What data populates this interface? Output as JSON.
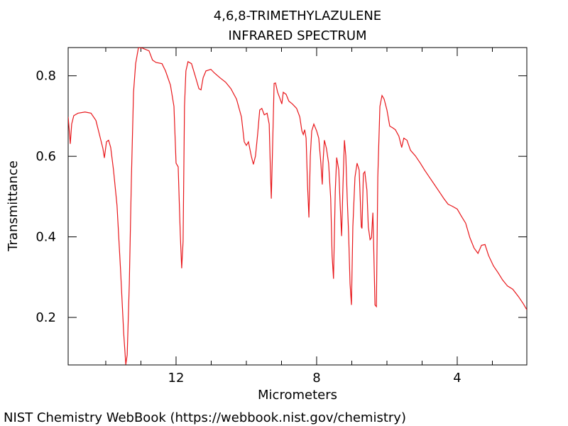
{
  "chart_data": {
    "type": "line",
    "title": "4,6,8-TRIMETHYLAZULENE",
    "subtitle": "INFRARED SPECTRUM",
    "x_label": "Micrometers",
    "y_label": "Transmittance",
    "footer": "NIST Chemistry WebBook (https://webbook.nist.gov/chemistry)",
    "color": "#e8171b",
    "xlim": [
      15.07,
      2.02
    ],
    "ylim": [
      0.082,
      0.87
    ],
    "xticks": [
      12,
      8,
      4
    ],
    "xminor_ticks": [
      14,
      13,
      11,
      10,
      9,
      7,
      6,
      5,
      3
    ],
    "yticks": [
      0.2,
      0.4,
      0.6,
      0.8
    ],
    "x": [
      15.07,
      15.03,
      15.01,
      14.97,
      14.91,
      14.79,
      14.59,
      14.42,
      14.28,
      14.18,
      14.08,
      14.04,
      13.98,
      13.92,
      13.86,
      13.78,
      13.68,
      13.58,
      13.49,
      13.43,
      13.39,
      13.33,
      13.27,
      13.21,
      13.15,
      13.07,
      12.97,
      12.77,
      12.67,
      12.57,
      12.4,
      12.3,
      12.16,
      12.06,
      12.0,
      11.94,
      11.88,
      11.84,
      11.8,
      11.76,
      11.72,
      11.66,
      11.56,
      11.45,
      11.35,
      11.29,
      11.23,
      11.15,
      11.01,
      10.91,
      10.75,
      10.59,
      10.44,
      10.28,
      10.14,
      10.06,
      10.0,
      9.94,
      9.86,
      9.8,
      9.74,
      9.68,
      9.62,
      9.56,
      9.49,
      9.41,
      9.35,
      9.31,
      9.29,
      9.25,
      9.21,
      9.17,
      9.11,
      9.05,
      8.99,
      8.95,
      8.87,
      8.79,
      8.69,
      8.57,
      8.48,
      8.42,
      8.38,
      8.34,
      8.3,
      8.26,
      8.22,
      8.18,
      8.14,
      8.08,
      8.0,
      7.94,
      7.88,
      7.84,
      7.82,
      7.78,
      7.72,
      7.66,
      7.6,
      7.56,
      7.52,
      7.47,
      7.43,
      7.37,
      7.33,
      7.29,
      7.25,
      7.21,
      7.17,
      7.13,
      7.09,
      7.05,
      7.01,
      6.97,
      6.91,
      6.85,
      6.79,
      6.73,
      6.71,
      6.67,
      6.63,
      6.57,
      6.53,
      6.48,
      6.44,
      6.4,
      6.38,
      6.34,
      6.3,
      6.26,
      6.2,
      6.14,
      6.08,
      6.0,
      5.92,
      5.84,
      5.76,
      5.66,
      5.58,
      5.52,
      5.43,
      5.33,
      5.19,
      5.05,
      4.93,
      4.79,
      4.65,
      4.48,
      4.38,
      4.26,
      4.14,
      4.0,
      3.88,
      3.76,
      3.64,
      3.52,
      3.41,
      3.31,
      3.21,
      3.11,
      2.97,
      2.83,
      2.71,
      2.57,
      2.42,
      2.26,
      2.12,
      2.02
    ],
    "values": [
      0.698,
      0.654,
      0.631,
      0.68,
      0.701,
      0.707,
      0.71,
      0.707,
      0.689,
      0.654,
      0.619,
      0.596,
      0.636,
      0.64,
      0.622,
      0.566,
      0.478,
      0.319,
      0.161,
      0.083,
      0.107,
      0.284,
      0.548,
      0.759,
      0.83,
      0.87,
      0.869,
      0.862,
      0.839,
      0.833,
      0.83,
      0.812,
      0.777,
      0.724,
      0.583,
      0.574,
      0.407,
      0.322,
      0.389,
      0.724,
      0.812,
      0.835,
      0.83,
      0.798,
      0.768,
      0.765,
      0.795,
      0.812,
      0.816,
      0.807,
      0.795,
      0.784,
      0.768,
      0.742,
      0.698,
      0.636,
      0.627,
      0.636,
      0.601,
      0.58,
      0.601,
      0.654,
      0.715,
      0.719,
      0.703,
      0.707,
      0.68,
      0.548,
      0.495,
      0.636,
      0.781,
      0.782,
      0.759,
      0.745,
      0.73,
      0.759,
      0.754,
      0.737,
      0.73,
      0.719,
      0.698,
      0.663,
      0.654,
      0.666,
      0.645,
      0.53,
      0.448,
      0.601,
      0.663,
      0.68,
      0.663,
      0.645,
      0.583,
      0.53,
      0.583,
      0.64,
      0.619,
      0.583,
      0.495,
      0.354,
      0.296,
      0.513,
      0.597,
      0.566,
      0.478,
      0.402,
      0.53,
      0.64,
      0.601,
      0.495,
      0.407,
      0.284,
      0.231,
      0.425,
      0.548,
      0.583,
      0.566,
      0.425,
      0.421,
      0.557,
      0.562,
      0.516,
      0.425,
      0.393,
      0.398,
      0.46,
      0.389,
      0.231,
      0.227,
      0.548,
      0.724,
      0.751,
      0.742,
      0.715,
      0.675,
      0.671,
      0.666,
      0.65,
      0.622,
      0.645,
      0.64,
      0.615,
      0.601,
      0.583,
      0.566,
      0.548,
      0.53,
      0.508,
      0.495,
      0.481,
      0.476,
      0.469,
      0.451,
      0.434,
      0.398,
      0.372,
      0.359,
      0.379,
      0.381,
      0.354,
      0.328,
      0.31,
      0.293,
      0.278,
      0.27,
      0.252,
      0.234,
      0.219
    ]
  }
}
